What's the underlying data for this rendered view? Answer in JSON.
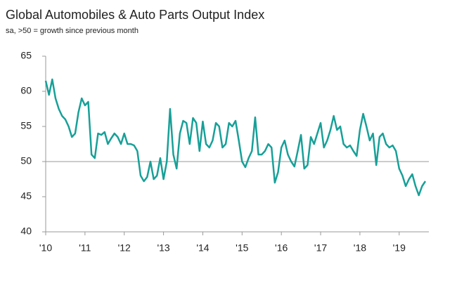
{
  "chart_data": {
    "type": "line",
    "title": "Global Automobiles & Auto Parts Output Index",
    "subtitle": "sa, >50 = growth since previous month",
    "categories": [
      "'10",
      null,
      null,
      null,
      null,
      null,
      null,
      null,
      null,
      null,
      null,
      null,
      "'11",
      null,
      null,
      null,
      null,
      null,
      null,
      null,
      null,
      null,
      null,
      null,
      "'12",
      null,
      null,
      null,
      null,
      null,
      null,
      null,
      null,
      null,
      null,
      null,
      "'13",
      null,
      null,
      null,
      null,
      null,
      null,
      null,
      null,
      null,
      null,
      null,
      "'14",
      null,
      null,
      null,
      null,
      null,
      null,
      null,
      null,
      null,
      null,
      null,
      "'15",
      null,
      null,
      null,
      null,
      null,
      null,
      null,
      null,
      null,
      null,
      null,
      "'16",
      null,
      null,
      null,
      null,
      null,
      null,
      null,
      null,
      null,
      null,
      null,
      "'17",
      null,
      null,
      null,
      null,
      null,
      null,
      null,
      null,
      null,
      null,
      null,
      "'18",
      null,
      null,
      null,
      null,
      null,
      null,
      null,
      null,
      null,
      null,
      null,
      "'19",
      null,
      null,
      null,
      null,
      null,
      null,
      null,
      null
    ],
    "series": [
      {
        "name": "Output Index",
        "color": "#17a098",
        "values": [
          61.5,
          59.5,
          61.7,
          59,
          57.5,
          56.5,
          56,
          55,
          53.5,
          54,
          57,
          59,
          58,
          58.5,
          51,
          50.5,
          54,
          53.8,
          54.2,
          52.5,
          53.3,
          54,
          53.5,
          52.5,
          54,
          52.5,
          52.5,
          52.3,
          51.5,
          48,
          47.2,
          47.8,
          50,
          47.5,
          48,
          50.5,
          47.5,
          50,
          57.5,
          51,
          49,
          54,
          55.8,
          55.5,
          52.5,
          56.2,
          55.5,
          51.5,
          55.7,
          52.5,
          52,
          53,
          55.5,
          55,
          52,
          52.5,
          55.5,
          55,
          55.8,
          53,
          50,
          49.2,
          50.5,
          51.5,
          56.3,
          51,
          51,
          51.5,
          52.5,
          52,
          47,
          48.5,
          52,
          53,
          51,
          50,
          49.3,
          51.5,
          53.8,
          49,
          49.5,
          53.5,
          52.5,
          54,
          55.5,
          52,
          53,
          54.5,
          56.5,
          54.5,
          55,
          52.5,
          52,
          52.3,
          51.5,
          50.8,
          54.5,
          56.8,
          55,
          53,
          54,
          49.5,
          53.5,
          54,
          52.5,
          52,
          52.3,
          51.5,
          49,
          48,
          46.5,
          47.5,
          48.2,
          46.5,
          45.2,
          46.5,
          47.2
        ]
      }
    ],
    "ylim": [
      40,
      65
    ],
    "yticks": [
      40,
      45,
      50,
      55,
      60,
      65
    ],
    "reference_line": 50
  }
}
